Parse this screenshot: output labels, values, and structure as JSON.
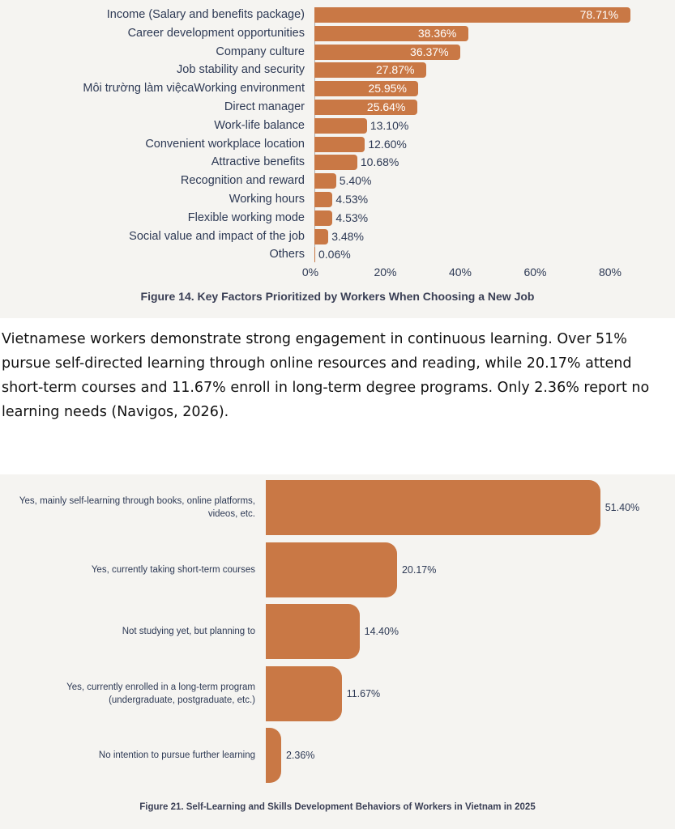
{
  "chart_data": [
    {
      "type": "bar",
      "orientation": "horizontal",
      "title": "Figure 14. Key Factors Prioritized by Workers When Choosing a New Job",
      "categories": [
        "Income (Salary and benefits package)",
        "Career development opportunities",
        "Company culture",
        "Job stability and security",
        "Môi trường làm việcaWorking environment",
        "Direct manager",
        "Work-life balance",
        "Convenient workplace location",
        "Attractive benefits",
        "Recognition and reward",
        "Working hours",
        "Flexible working mode",
        "Social value and impact of the job",
        "Others"
      ],
      "values": [
        78.71,
        38.36,
        36.37,
        27.87,
        25.95,
        25.64,
        13.1,
        12.6,
        10.68,
        5.4,
        4.53,
        4.53,
        3.48,
        0.06
      ],
      "labels": [
        "78.71%",
        "38.36%",
        "36.37%",
        "27.87%",
        "25.95%",
        "25.64%",
        "13.10%",
        "12.60%",
        "10.68%",
        "5.40%",
        "4.53%",
        "4.53%",
        "3.48%",
        "0.06%"
      ],
      "xticks": [
        "0%",
        "20%",
        "40%",
        "60%",
        "80%"
      ],
      "xlim": [
        0,
        80
      ],
      "color": "#c97845"
    },
    {
      "type": "bar",
      "orientation": "horizontal",
      "title": "Figure 21. Self-Learning and Skills Development Behaviors of Workers in Vietnam in 2025",
      "categories": [
        "Yes, mainly self-learning through books, online platforms, videos, etc.",
        "Yes, currently taking short-term courses",
        "Not studying yet, but planning to",
        "Yes, currently enrolled in a long-term program (undergraduate, postgraduate, etc.)",
        "No intention to pursue further learning"
      ],
      "values": [
        51.4,
        20.17,
        14.4,
        11.67,
        2.36
      ],
      "labels": [
        "51.40%",
        "20.17%",
        "14.40%",
        "11.67%",
        "2.36%"
      ],
      "color": "#c97845"
    }
  ],
  "paragraph": "Vietnamese workers demonstrate strong engagement in continuous learning. Over 51% pursue self-directed learning through online resources and reading, while 20.17% attend short-term courses and 11.67% enroll in long-term degree programs. Only 2.36% report no learning needs (Navigos, 2026)."
}
